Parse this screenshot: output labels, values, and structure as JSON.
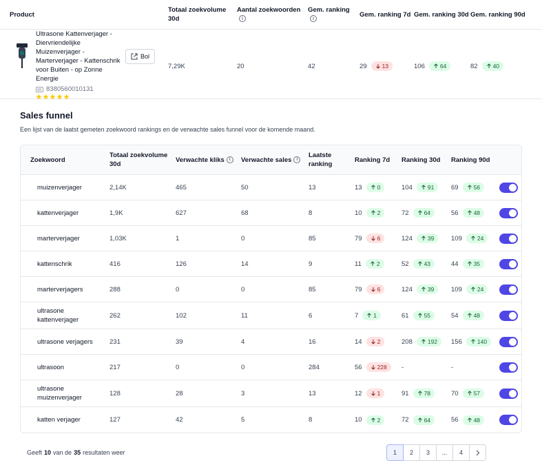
{
  "product_table": {
    "headers": [
      "Product",
      "Totaal zoekvolume 30d",
      "Aantal zoekwoorden",
      "Gem. ranking",
      "Gem. ranking 7d",
      "Gem. ranking 30d",
      "Gem. ranking 90d"
    ],
    "product": {
      "name": "Ultrasone Kattenverjager - Diervriendelijke Muizenverjager - Marterverjager - Kattenschrik voor Buiten - op Zonne Energie",
      "button": "Bol",
      "ean": "8380560010131",
      "rating": 5,
      "volume": "7,29K",
      "keywords": "20",
      "ranking": "42",
      "rank_7d": {
        "value": "29",
        "change": "13",
        "trend": "down"
      },
      "rank_30d": {
        "value": "106",
        "change": "64",
        "trend": "up"
      },
      "rank_90d": {
        "value": "82",
        "change": "40",
        "trend": "up"
      }
    }
  },
  "funnel": {
    "title": "Sales funnel",
    "description": "Een lijst van de laatst gemeten zoekwoord rankings en de verwachte sales funnel voor de komende maand.",
    "headers": [
      "Zoekwoord",
      "Totaal zoekvolume 30d",
      "Verwachte kliks",
      "Verwachte sales",
      "Laatste ranking",
      "Ranking 7d",
      "Ranking 30d",
      "Ranking 90d"
    ],
    "rows": [
      {
        "keyword": "muizenverjager",
        "volume": "2,14K",
        "clicks": "465",
        "sales": "50",
        "last": "13",
        "r7": {
          "value": "13",
          "change": "0",
          "trend": "up"
        },
        "r30": {
          "value": "104",
          "change": "91",
          "trend": "up"
        },
        "r90": {
          "value": "69",
          "change": "56",
          "trend": "up"
        },
        "enabled": true
      },
      {
        "keyword": "kattenverjager",
        "volume": "1,9K",
        "clicks": "627",
        "sales": "68",
        "last": "8",
        "r7": {
          "value": "10",
          "change": "2",
          "trend": "up"
        },
        "r30": {
          "value": "72",
          "change": "64",
          "trend": "up"
        },
        "r90": {
          "value": "56",
          "change": "48",
          "trend": "up"
        },
        "enabled": true
      },
      {
        "keyword": "marterverjager",
        "volume": "1,03K",
        "clicks": "1",
        "sales": "0",
        "last": "85",
        "r7": {
          "value": "79",
          "change": "6",
          "trend": "down"
        },
        "r30": {
          "value": "124",
          "change": "39",
          "trend": "up"
        },
        "r90": {
          "value": "109",
          "change": "24",
          "trend": "up"
        },
        "enabled": true
      },
      {
        "keyword": "kattenschrik",
        "volume": "416",
        "clicks": "126",
        "sales": "14",
        "last": "9",
        "r7": {
          "value": "11",
          "change": "2",
          "trend": "up"
        },
        "r30": {
          "value": "52",
          "change": "43",
          "trend": "up"
        },
        "r90": {
          "value": "44",
          "change": "35",
          "trend": "up"
        },
        "enabled": true
      },
      {
        "keyword": "marterverjagers",
        "volume": "288",
        "clicks": "0",
        "sales": "0",
        "last": "85",
        "r7": {
          "value": "79",
          "change": "6",
          "trend": "down"
        },
        "r30": {
          "value": "124",
          "change": "39",
          "trend": "up"
        },
        "r90": {
          "value": "109",
          "change": "24",
          "trend": "up"
        },
        "enabled": true
      },
      {
        "keyword": "ultrasone kattenverjager",
        "volume": "262",
        "clicks": "102",
        "sales": "11",
        "last": "6",
        "r7": {
          "value": "7",
          "change": "1",
          "trend": "up"
        },
        "r30": {
          "value": "61",
          "change": "55",
          "trend": "up"
        },
        "r90": {
          "value": "54",
          "change": "48",
          "trend": "up"
        },
        "enabled": true
      },
      {
        "keyword": "ultrasone verjagers",
        "volume": "231",
        "clicks": "39",
        "sales": "4",
        "last": "16",
        "r7": {
          "value": "14",
          "change": "2",
          "trend": "down"
        },
        "r30": {
          "value": "208",
          "change": "192",
          "trend": "up"
        },
        "r90": {
          "value": "156",
          "change": "140",
          "trend": "up"
        },
        "enabled": true
      },
      {
        "keyword": "ultrasoon",
        "volume": "217",
        "clicks": "0",
        "sales": "0",
        "last": "284",
        "r7": {
          "value": "56",
          "change": "228",
          "trend": "down"
        },
        "r30": {
          "value": "-"
        },
        "r90": {
          "value": "-"
        },
        "enabled": true
      },
      {
        "keyword": "ultrasone muizenverjager",
        "volume": "128",
        "clicks": "28",
        "sales": "3",
        "last": "13",
        "r7": {
          "value": "12",
          "change": "1",
          "trend": "down"
        },
        "r30": {
          "value": "91",
          "change": "78",
          "trend": "up"
        },
        "r90": {
          "value": "70",
          "change": "57",
          "trend": "up"
        },
        "enabled": true
      },
      {
        "keyword": "katten verjager",
        "volume": "127",
        "clicks": "42",
        "sales": "5",
        "last": "8",
        "r7": {
          "value": "10",
          "change": "2",
          "trend": "up"
        },
        "r30": {
          "value": "72",
          "change": "64",
          "trend": "up"
        },
        "r90": {
          "value": "56",
          "change": "48",
          "trend": "up"
        },
        "enabled": true
      }
    ],
    "footer": [
      "Geeft",
      "10",
      "van de",
      "35",
      "resultaten weer"
    ],
    "pagination": [
      "1",
      "2",
      "3",
      "...",
      "4"
    ],
    "current_page": "1"
  }
}
